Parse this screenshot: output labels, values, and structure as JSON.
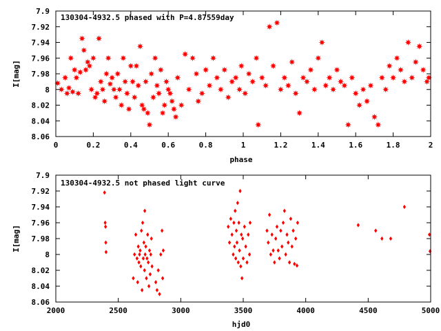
{
  "colors": {
    "points": "#ff0000",
    "axes": "#000000",
    "background": "#ffffff"
  },
  "chart_data": [
    {
      "type": "scatter",
      "title": "130304-4932.5 phased with P=4.87559day",
      "xlabel": "phase",
      "ylabel": "I[mag]",
      "xlim": [
        0,
        2
      ],
      "ylim": [
        7.9,
        8.06
      ],
      "y_inverted": true,
      "grid": false,
      "x_ticks": [
        "0",
        "0.2",
        "0.4",
        "0.6",
        "0.8",
        "1",
        "1.2",
        "1.4",
        "1.6",
        "1.8",
        "2"
      ],
      "y_ticks": [
        "7.9",
        "7.92",
        "7.94",
        "7.96",
        "7.98",
        "8",
        "8.02",
        "8.04",
        "8.06"
      ],
      "marker": "star",
      "points": [
        [
          0.01,
          7.992
        ],
        [
          0.03,
          8.0
        ],
        [
          0.05,
          7.985
        ],
        [
          0.06,
          8.005
        ],
        [
          0.07,
          7.998
        ],
        [
          0.08,
          7.96
        ],
        [
          0.09,
          8.003
        ],
        [
          0.1,
          7.975
        ],
        [
          0.11,
          7.985
        ],
        [
          0.12,
          8.005
        ],
        [
          0.13,
          7.978
        ],
        [
          0.14,
          7.935
        ],
        [
          0.15,
          7.95
        ],
        [
          0.16,
          7.975
        ],
        [
          0.17,
          7.965
        ],
        [
          0.18,
          7.97
        ],
        [
          0.19,
          8.0
        ],
        [
          0.2,
          7.96
        ],
        [
          0.21,
          8.01
        ],
        [
          0.22,
          8.005
        ],
        [
          0.23,
          7.935
        ],
        [
          0.24,
          7.99
        ],
        [
          0.25,
          8.0
        ],
        [
          0.26,
          8.015
        ],
        [
          0.27,
          7.98
        ],
        [
          0.28,
          7.96
        ],
        [
          0.29,
          7.993
        ],
        [
          0.3,
          7.985
        ],
        [
          0.31,
          8.0
        ],
        [
          0.32,
          8.01
        ],
        [
          0.33,
          7.98
        ],
        [
          0.34,
          8.0
        ],
        [
          0.35,
          8.02
        ],
        [
          0.36,
          7.96
        ],
        [
          0.37,
          7.99
        ],
        [
          0.38,
          8.005
        ],
        [
          0.39,
          8.025
        ],
        [
          0.4,
          7.97
        ],
        [
          0.41,
          7.99
        ],
        [
          0.42,
          8.01
        ],
        [
          0.43,
          7.97
        ],
        [
          0.44,
          7.995
        ],
        [
          0.45,
          7.945
        ],
        [
          0.46,
          8.02
        ],
        [
          0.47,
          8.025
        ],
        [
          0.48,
          7.99
        ],
        [
          0.49,
          8.03
        ],
        [
          0.5,
          8.045
        ],
        [
          0.51,
          7.98
        ],
        [
          0.52,
          8.01
        ],
        [
          0.53,
          7.96
        ],
        [
          0.54,
          7.995
        ],
        [
          0.55,
          8.005
        ],
        [
          0.56,
          7.975
        ],
        [
          0.57,
          8.03
        ],
        [
          0.58,
          8.02
        ],
        [
          0.59,
          7.99
        ],
        [
          0.6,
          8.0
        ],
        [
          0.61,
          8.005
        ],
        [
          0.62,
          8.015
        ],
        [
          0.63,
          8.025
        ],
        [
          0.64,
          8.035
        ],
        [
          0.65,
          7.985
        ],
        [
          0.67,
          8.02
        ],
        [
          0.69,
          7.955
        ],
        [
          0.71,
          8.0
        ],
        [
          0.73,
          7.96
        ],
        [
          0.75,
          7.98
        ],
        [
          0.76,
          8.015
        ],
        [
          0.78,
          8.005
        ],
        [
          0.8,
          7.975
        ],
        [
          0.82,
          7.995
        ],
        [
          0.84,
          7.96
        ],
        [
          0.86,
          7.985
        ],
        [
          0.88,
          8.0
        ],
        [
          0.9,
          7.975
        ],
        [
          0.92,
          8.01
        ],
        [
          0.94,
          7.99
        ],
        [
          0.96,
          7.985
        ],
        [
          0.98,
          8.0
        ],
        [
          0.99,
          7.97
        ],
        [
          1.01,
          8.005
        ],
        [
          1.03,
          7.98
        ],
        [
          1.05,
          7.99
        ],
        [
          1.07,
          7.96
        ],
        [
          1.08,
          8.045
        ],
        [
          1.1,
          7.985
        ],
        [
          1.12,
          7.995
        ],
        [
          1.14,
          7.92
        ],
        [
          1.16,
          7.97
        ],
        [
          1.18,
          7.915
        ],
        [
          1.2,
          8.0
        ],
        [
          1.22,
          7.985
        ],
        [
          1.24,
          7.995
        ],
        [
          1.26,
          7.965
        ],
        [
          1.28,
          8.005
        ],
        [
          1.3,
          8.03
        ],
        [
          1.32,
          7.985
        ],
        [
          1.34,
          7.99
        ],
        [
          1.36,
          7.975
        ],
        [
          1.38,
          8.0
        ],
        [
          1.4,
          7.96
        ],
        [
          1.42,
          7.94
        ],
        [
          1.44,
          7.995
        ],
        [
          1.46,
          7.985
        ],
        [
          1.48,
          8.0
        ],
        [
          1.5,
          7.975
        ],
        [
          1.52,
          7.99
        ],
        [
          1.54,
          7.995
        ],
        [
          1.56,
          8.045
        ],
        [
          1.58,
          7.985
        ],
        [
          1.6,
          8.005
        ],
        [
          1.62,
          8.02
        ],
        [
          1.64,
          8.0
        ],
        [
          1.66,
          8.015
        ],
        [
          1.68,
          7.995
        ],
        [
          1.7,
          8.035
        ],
        [
          1.72,
          8.045
        ],
        [
          1.74,
          7.985
        ],
        [
          1.76,
          8.0
        ],
        [
          1.78,
          7.97
        ],
        [
          1.8,
          7.985
        ],
        [
          1.82,
          7.96
        ],
        [
          1.84,
          7.975
        ],
        [
          1.86,
          7.99
        ],
        [
          1.88,
          7.94
        ],
        [
          1.9,
          7.985
        ],
        [
          1.92,
          7.965
        ],
        [
          1.94,
          7.945
        ],
        [
          1.96,
          7.975
        ],
        [
          1.98,
          7.99
        ],
        [
          1.99,
          7.985
        ]
      ]
    },
    {
      "type": "scatter",
      "title": "130304-4932.5 not phased light curve",
      "xlabel": "hjd0",
      "ylabel": "I[mag]",
      "xlim": [
        2000,
        5000
      ],
      "ylim": [
        7.9,
        8.06
      ],
      "y_inverted": true,
      "grid": false,
      "x_ticks": [
        "2000",
        "2500",
        "3000",
        "3500",
        "4000",
        "4500",
        "5000"
      ],
      "y_ticks": [
        "7.9",
        "7.92",
        "7.94",
        "7.96",
        "7.98",
        "8",
        "8.02",
        "8.04",
        "8.06"
      ],
      "marker": "diamond",
      "points": [
        [
          2390,
          7.922
        ],
        [
          2395,
          7.96
        ],
        [
          2398,
          7.965
        ],
        [
          2400,
          7.985
        ],
        [
          2402,
          7.997
        ],
        [
          2620,
          8.03
        ],
        [
          2630,
          8.0
        ],
        [
          2640,
          7.975
        ],
        [
          2650,
          8.005
        ],
        [
          2655,
          8.035
        ],
        [
          2660,
          7.99
        ],
        [
          2665,
          8.01
        ],
        [
          2670,
          8.0
        ],
        [
          2675,
          7.995
        ],
        [
          2680,
          8.015
        ],
        [
          2685,
          7.97
        ],
        [
          2690,
          8.045
        ],
        [
          2695,
          7.96
        ],
        [
          2700,
          8.005
        ],
        [
          2705,
          7.985
        ],
        [
          2710,
          8.02
        ],
        [
          2712,
          7.945
        ],
        [
          2715,
          8.0
        ],
        [
          2720,
          7.99
        ],
        [
          2725,
          8.03
        ],
        [
          2730,
          8.005
        ],
        [
          2735,
          7.975
        ],
        [
          2740,
          8.01
        ],
        [
          2745,
          8.04
        ],
        [
          2750,
          7.995
        ],
        [
          2755,
          8.025
        ],
        [
          2760,
          8.0
        ],
        [
          2765,
          7.98
        ],
        [
          2770,
          8.015
        ],
        [
          2800,
          8.035
        ],
        [
          2810,
          8.045
        ],
        [
          2820,
          8.02
        ],
        [
          2830,
          8.05
        ],
        [
          2840,
          8.0
        ],
        [
          2850,
          7.97
        ],
        [
          2855,
          8.03
        ],
        [
          2860,
          7.995
        ],
        [
          3380,
          7.965
        ],
        [
          3390,
          7.985
        ],
        [
          3400,
          7.955
        ],
        [
          3410,
          7.975
        ],
        [
          3420,
          8.0
        ],
        [
          3425,
          7.96
        ],
        [
          3430,
          7.99
        ],
        [
          3435,
          7.945
        ],
        [
          3440,
          8.005
        ],
        [
          3445,
          7.97
        ],
        [
          3450,
          7.985
        ],
        [
          3455,
          7.935
        ],
        [
          3460,
          8.01
        ],
        [
          3465,
          7.96
        ],
        [
          3470,
          7.995
        ],
        [
          3475,
          7.92
        ],
        [
          3480,
          8.015
        ],
        [
          3485,
          7.975
        ],
        [
          3490,
          8.03
        ],
        [
          3495,
          7.98
        ],
        [
          3500,
          8.005
        ],
        [
          3510,
          7.965
        ],
        [
          3520,
          7.99
        ],
        [
          3530,
          8.01
        ],
        [
          3540,
          7.975
        ],
        [
          3550,
          8.0
        ],
        [
          3555,
          7.96
        ],
        [
          3690,
          7.97
        ],
        [
          3700,
          7.985
        ],
        [
          3710,
          7.95
        ],
        [
          3720,
          8.0
        ],
        [
          3730,
          7.975
        ],
        [
          3740,
          7.995
        ],
        [
          3750,
          8.01
        ],
        [
          3760,
          7.98
        ],
        [
          3770,
          7.965
        ],
        [
          3780,
          7.995
        ],
        [
          3790,
          8.005
        ],
        [
          3800,
          7.97
        ],
        [
          3810,
          7.99
        ],
        [
          3820,
          7.96
        ],
        [
          3830,
          7.945
        ],
        [
          3840,
          8.0
        ],
        [
          3850,
          7.975
        ],
        [
          3860,
          7.985
        ],
        [
          3870,
          8.01
        ],
        [
          3880,
          7.955
        ],
        [
          3890,
          7.99
        ],
        [
          3900,
          7.97
        ],
        [
          3910,
          8.012
        ],
        [
          3920,
          7.98
        ],
        [
          3930,
          8.014
        ],
        [
          3935,
          7.96
        ],
        [
          4420,
          7.963
        ],
        [
          4560,
          7.97
        ],
        [
          4610,
          7.98
        ],
        [
          4680,
          7.98
        ],
        [
          4790,
          7.94
        ],
        [
          4990,
          7.975
        ],
        [
          4995,
          7.996
        ]
      ]
    }
  ]
}
